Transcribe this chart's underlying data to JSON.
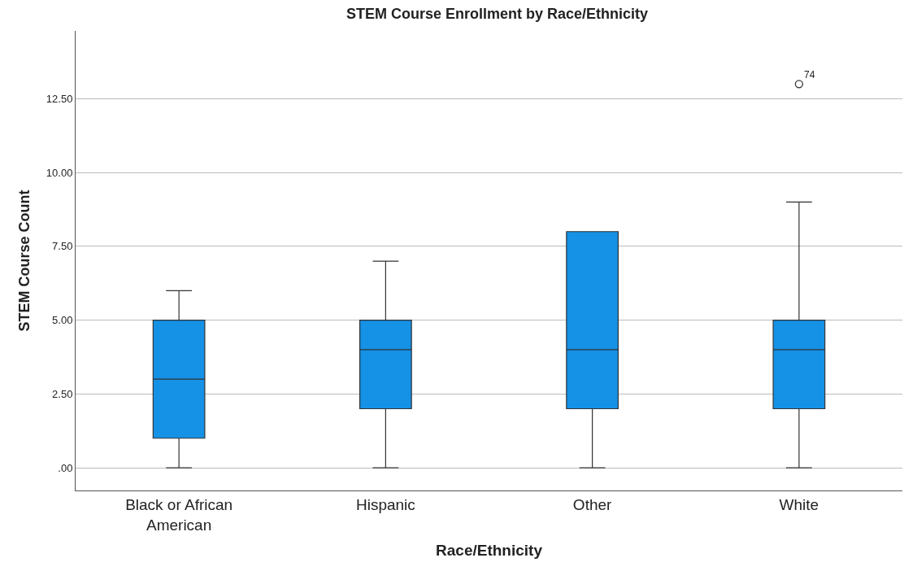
{
  "chart_data": {
    "type": "box",
    "title": "STEM Course Enrollment by Race/Ethnicity",
    "xlabel": "Race/Ethnicity",
    "ylabel": "STEM Course Count",
    "categories": [
      "Black or African American",
      "Hispanic",
      "Other",
      "White"
    ],
    "series": [
      {
        "color": "#1591e6",
        "boxes": [
          {
            "low": 0,
            "q1": 1,
            "median": 3,
            "q3": 5,
            "high": 6
          },
          {
            "low": 0,
            "q1": 2,
            "median": 4,
            "q3": 5,
            "high": 7
          },
          {
            "low": 0,
            "q1": 2,
            "median": 4,
            "q3": 8,
            "high": 8
          },
          {
            "low": 0,
            "q1": 2,
            "median": 4,
            "q3": 5,
            "high": 9,
            "outliers": [
              13
            ]
          }
        ]
      }
    ],
    "annotations": [
      "74"
    ],
    "ylim": [
      -0.77,
      14.8
    ],
    "yticks": [
      {
        "value": 0,
        "label": ".00"
      },
      {
        "value": 2.5,
        "label": "2.50"
      },
      {
        "value": 5,
        "label": "5.00"
      },
      {
        "value": 7.5,
        "label": "7.50"
      },
      {
        "value": 10,
        "label": "10.00"
      },
      {
        "value": 12.5,
        "label": "12.50"
      }
    ],
    "grid": "y"
  }
}
